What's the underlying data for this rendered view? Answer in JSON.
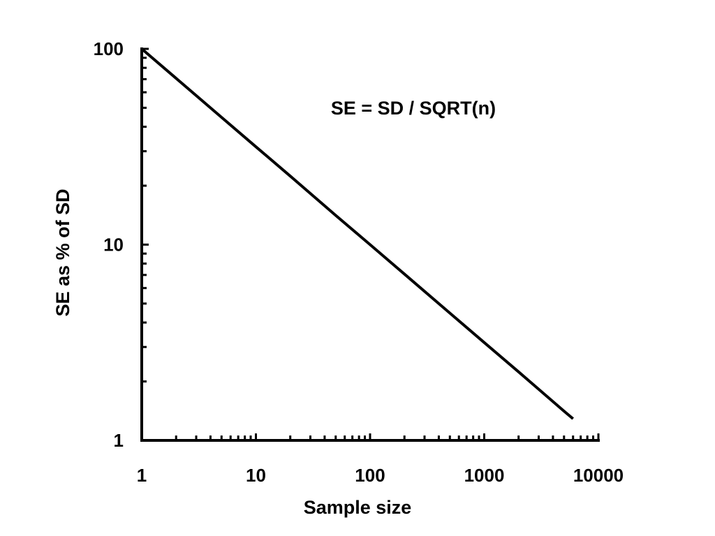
{
  "chart_data": {
    "type": "line",
    "title": "",
    "xlabel": "Sample size",
    "ylabel": "SE as % of SD",
    "annotation": "SE = SD / SQRT(n)",
    "xscale": "log",
    "yscale": "log",
    "xlim": [
      1,
      10000
    ],
    "ylim": [
      1,
      100
    ],
    "xticks": [
      {
        "value": 1,
        "label": "1"
      },
      {
        "value": 10,
        "label": "10"
      },
      {
        "value": 100,
        "label": "100"
      },
      {
        "value": 1000,
        "label": "1000"
      },
      {
        "value": 10000,
        "label": "10000"
      }
    ],
    "yticks": [
      {
        "value": 1,
        "label": "1"
      },
      {
        "value": 10,
        "label": "10"
      },
      {
        "value": 100,
        "label": "100"
      }
    ],
    "grid": false,
    "legend": "none",
    "line_color": "#000000",
    "series": [
      {
        "x": [
          1,
          2,
          5,
          10,
          20,
          50,
          100,
          200,
          500,
          1000,
          2000,
          5000,
          6000
        ],
        "y": [
          100,
          70.7,
          44.7,
          31.6,
          22.4,
          14.1,
          10,
          7.07,
          4.47,
          3.16,
          2.24,
          1.41,
          1.29
        ]
      }
    ]
  }
}
